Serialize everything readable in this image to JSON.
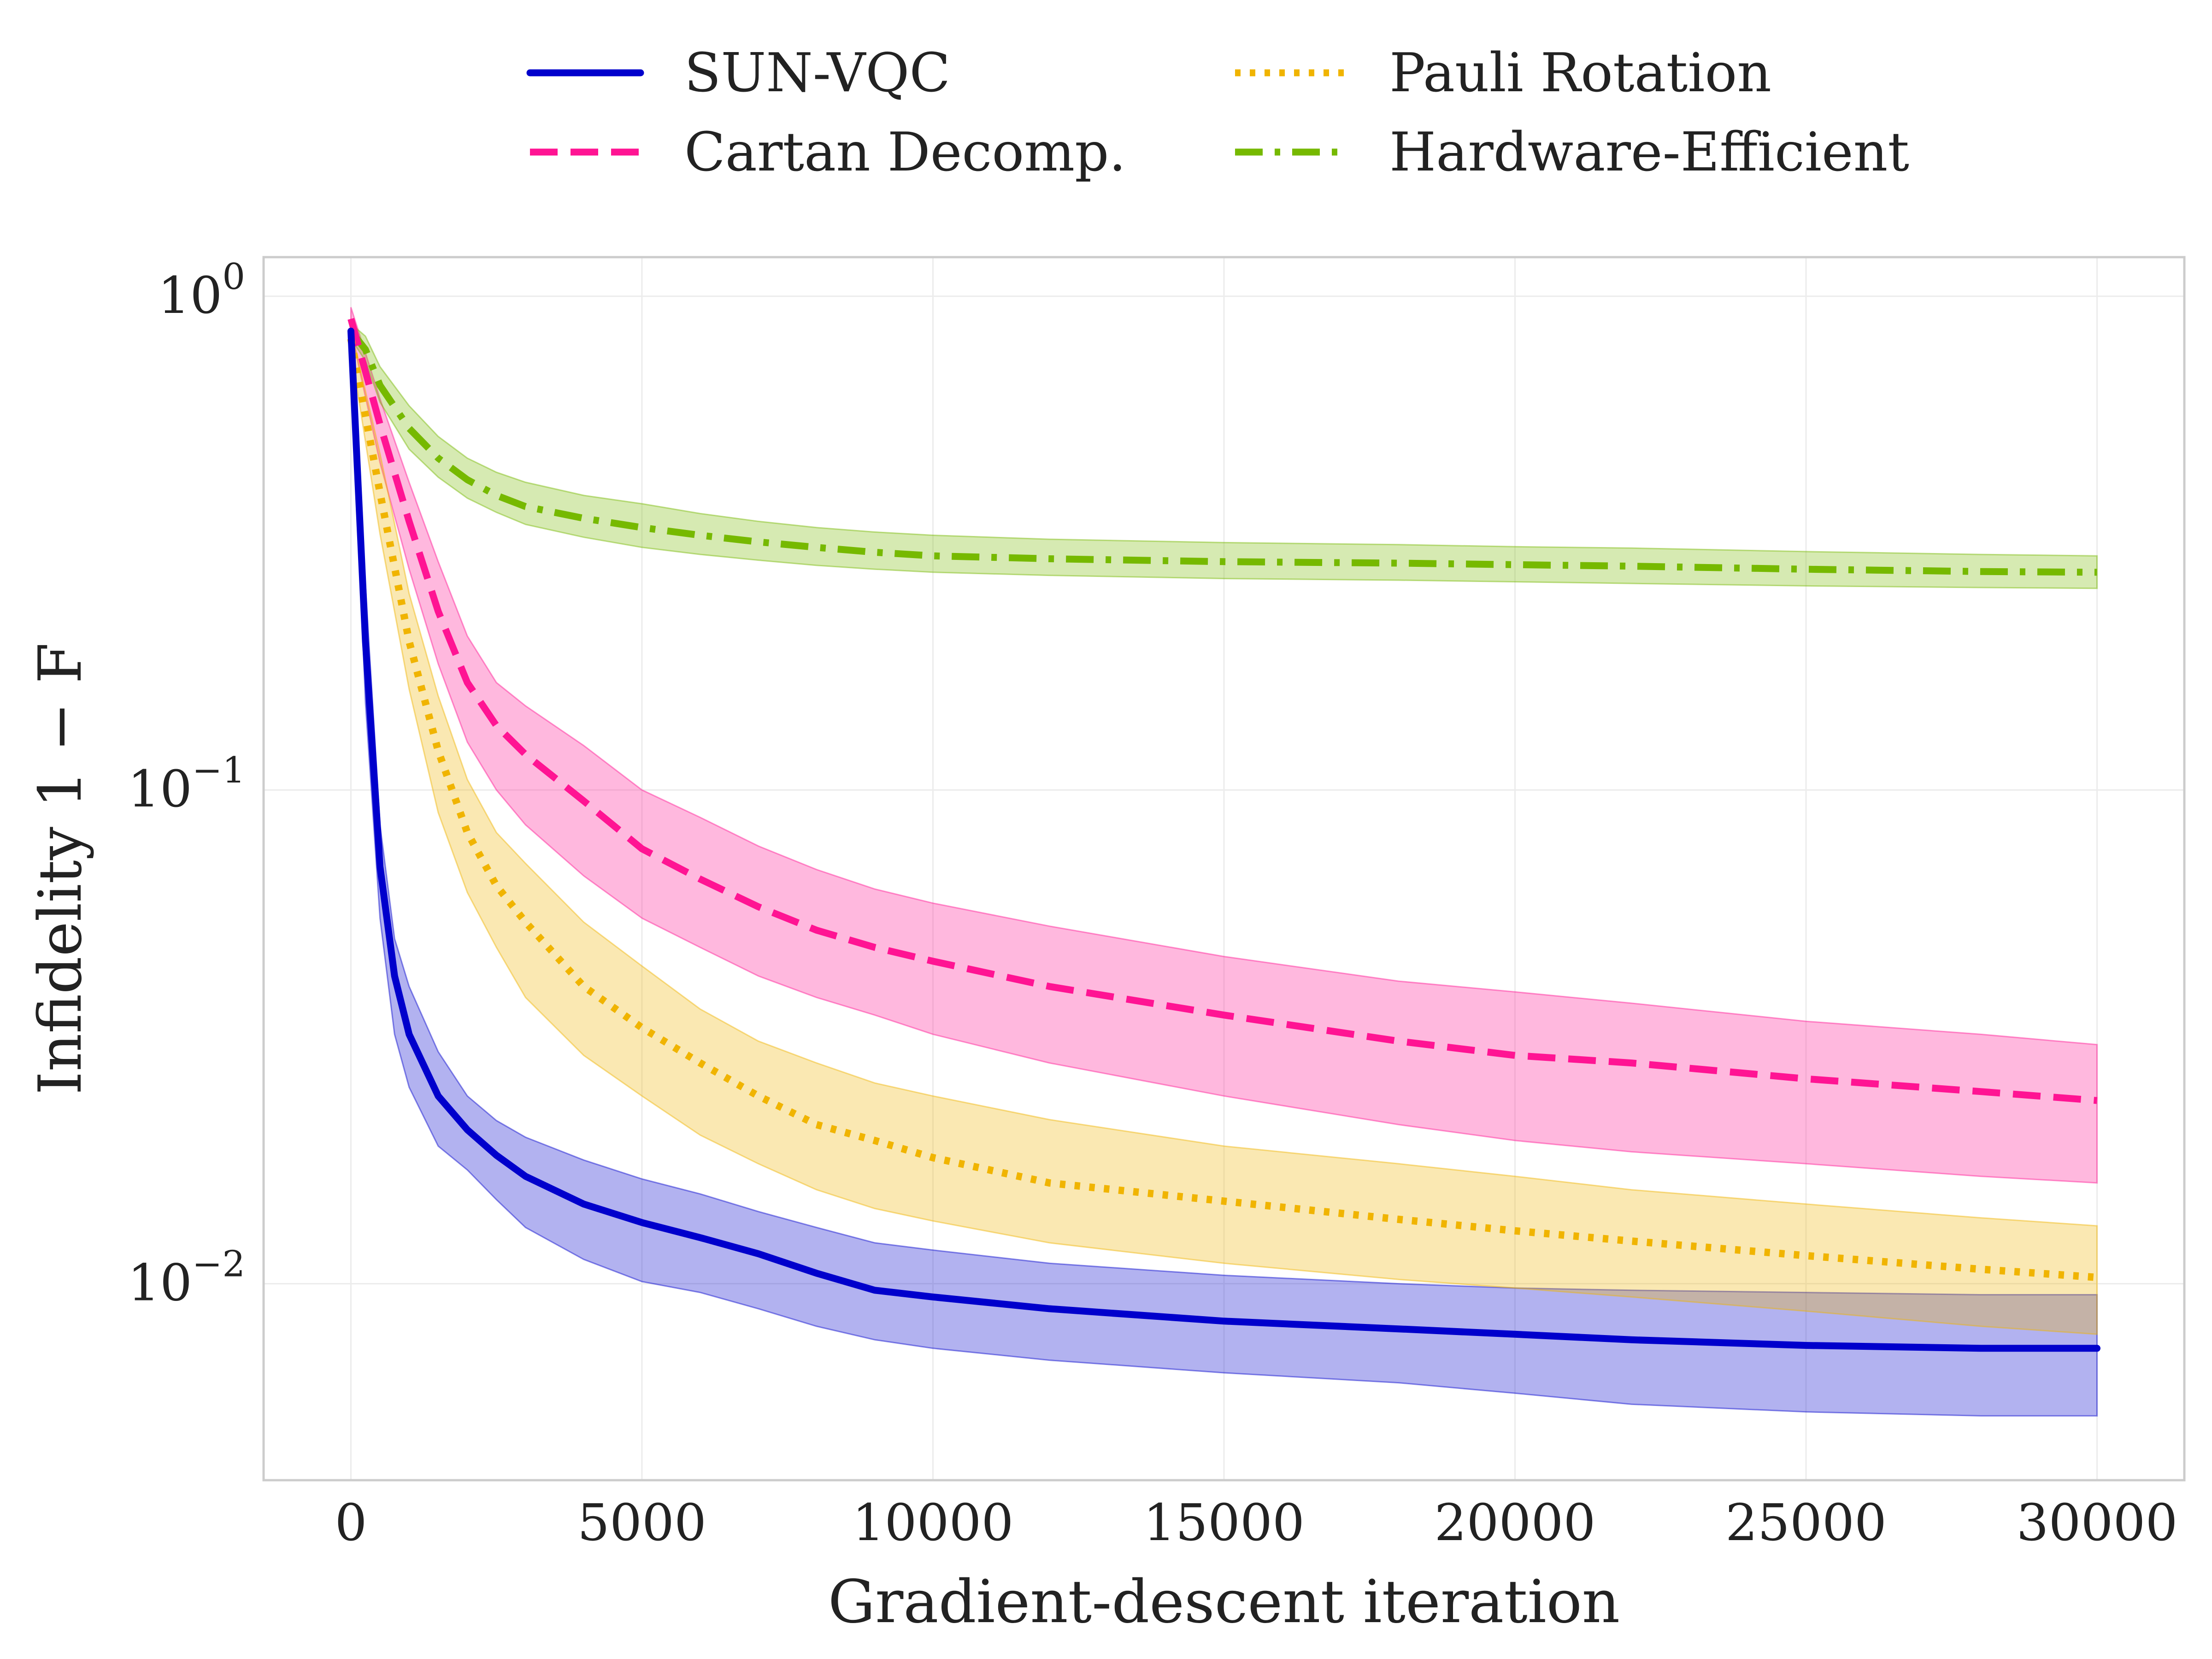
{
  "chart_data": {
    "type": "line",
    "title": "",
    "xlabel": "Gradient-descent iteration",
    "ylabel": "Infidelity 1 − F",
    "xlim": [
      -1500,
      31500
    ],
    "ylim": [
      0.004,
      1.2
    ],
    "yscale": "log",
    "grid": true,
    "legend_position": "top-center",
    "x_ticks": [
      0,
      5000,
      10000,
      15000,
      20000,
      25000,
      30000
    ],
    "x_tick_labels": [
      "0",
      "5000",
      "10000",
      "15000",
      "20000",
      "25000",
      "30000"
    ],
    "y_ticks": [
      {
        "value": 1,
        "base": "10",
        "exp": "0"
      },
      {
        "value": 0.1,
        "base": "10",
        "exp": "−1"
      },
      {
        "value": 0.01,
        "base": "10",
        "exp": "−2"
      }
    ],
    "series": [
      {
        "name": "SUN-VQC",
        "color": "#0000cc",
        "dash": "solid",
        "x": [
          0,
          250,
          500,
          750,
          1000,
          1500,
          2000,
          2500,
          3000,
          4000,
          5000,
          6000,
          7000,
          8000,
          9000,
          10000,
          12000,
          15000,
          18000,
          20000,
          22000,
          25000,
          28000,
          30000
        ],
        "mean": [
          0.85,
          0.2,
          0.07,
          0.042,
          0.032,
          0.024,
          0.0205,
          0.0182,
          0.0165,
          0.0145,
          0.0133,
          0.0124,
          0.0115,
          0.0105,
          0.0097,
          0.0094,
          0.0089,
          0.0084,
          0.0081,
          0.0079,
          0.0077,
          0.0075,
          0.0074,
          0.0074
        ],
        "lower": [
          0.8,
          0.15,
          0.055,
          0.032,
          0.025,
          0.019,
          0.017,
          0.0148,
          0.013,
          0.0112,
          0.0101,
          0.0096,
          0.0089,
          0.0082,
          0.0077,
          0.0074,
          0.007,
          0.0066,
          0.0063,
          0.006,
          0.0057,
          0.0055,
          0.0054,
          0.0054
        ],
        "upper": [
          0.9,
          0.26,
          0.085,
          0.05,
          0.04,
          0.0295,
          0.024,
          0.0214,
          0.0198,
          0.0178,
          0.0163,
          0.0152,
          0.014,
          0.013,
          0.0121,
          0.0117,
          0.011,
          0.0104,
          0.01,
          0.0098,
          0.0097,
          0.0096,
          0.0095,
          0.0095
        ]
      },
      {
        "name": "Cartan Decomp.",
        "color": "#ff1493",
        "dash": "dashed",
        "x": [
          0,
          500,
          1000,
          1500,
          2000,
          2500,
          3000,
          4000,
          5000,
          6000,
          7000,
          8000,
          9000,
          10000,
          12000,
          15000,
          18000,
          20000,
          22000,
          25000,
          28000,
          30000
        ],
        "mean": [
          0.9,
          0.55,
          0.35,
          0.23,
          0.165,
          0.135,
          0.118,
          0.095,
          0.076,
          0.066,
          0.058,
          0.052,
          0.048,
          0.045,
          0.04,
          0.035,
          0.031,
          0.029,
          0.028,
          0.026,
          0.0245,
          0.0235
        ],
        "lower": [
          0.85,
          0.46,
          0.28,
          0.18,
          0.125,
          0.1,
          0.085,
          0.067,
          0.055,
          0.048,
          0.042,
          0.038,
          0.035,
          0.032,
          0.028,
          0.024,
          0.021,
          0.0195,
          0.0185,
          0.0175,
          0.0165,
          0.016
        ],
        "upper": [
          0.95,
          0.62,
          0.42,
          0.29,
          0.205,
          0.165,
          0.148,
          0.123,
          0.1,
          0.088,
          0.077,
          0.069,
          0.063,
          0.059,
          0.053,
          0.046,
          0.041,
          0.039,
          0.037,
          0.034,
          0.032,
          0.0305
        ]
      },
      {
        "name": "Pauli Rotation",
        "color": "#f0b400",
        "dash": "dotted",
        "x": [
          0,
          500,
          1000,
          1500,
          2000,
          2500,
          3000,
          4000,
          5000,
          6000,
          7000,
          8000,
          9000,
          10000,
          12000,
          15000,
          18000,
          20000,
          22000,
          25000,
          28000,
          30000
        ],
        "mean": [
          0.82,
          0.4,
          0.2,
          0.12,
          0.082,
          0.064,
          0.054,
          0.04,
          0.033,
          0.028,
          0.024,
          0.021,
          0.0195,
          0.018,
          0.016,
          0.0147,
          0.0135,
          0.0128,
          0.0122,
          0.0114,
          0.0107,
          0.0103
        ],
        "lower": [
          0.78,
          0.33,
          0.16,
          0.09,
          0.062,
          0.048,
          0.038,
          0.029,
          0.024,
          0.02,
          0.0175,
          0.0155,
          0.0142,
          0.0134,
          0.0121,
          0.011,
          0.0102,
          0.0098,
          0.0094,
          0.0088,
          0.0082,
          0.0079
        ],
        "upper": [
          0.86,
          0.48,
          0.25,
          0.155,
          0.105,
          0.082,
          0.071,
          0.054,
          0.044,
          0.036,
          0.031,
          0.028,
          0.0255,
          0.024,
          0.0215,
          0.019,
          0.0175,
          0.0165,
          0.0155,
          0.0145,
          0.0136,
          0.0131
        ]
      },
      {
        "name": "Hardware-Efficient",
        "color": "#76b900",
        "dash": "dashdot",
        "x": [
          0,
          250,
          500,
          1000,
          1500,
          2000,
          2500,
          3000,
          4000,
          5000,
          6000,
          7000,
          8000,
          9000,
          10000,
          12000,
          15000,
          18000,
          20000,
          22000,
          25000,
          28000,
          30000
        ],
        "mean": [
          0.85,
          0.78,
          0.66,
          0.54,
          0.47,
          0.425,
          0.395,
          0.375,
          0.355,
          0.34,
          0.328,
          0.318,
          0.31,
          0.303,
          0.298,
          0.294,
          0.29,
          0.288,
          0.286,
          0.284,
          0.28,
          0.277,
          0.276
        ],
        "lower": [
          0.82,
          0.74,
          0.61,
          0.49,
          0.43,
          0.39,
          0.365,
          0.345,
          0.325,
          0.31,
          0.3,
          0.292,
          0.285,
          0.28,
          0.276,
          0.272,
          0.268,
          0.266,
          0.264,
          0.262,
          0.259,
          0.257,
          0.256
        ],
        "upper": [
          0.88,
          0.83,
          0.72,
          0.6,
          0.52,
          0.47,
          0.44,
          0.42,
          0.395,
          0.38,
          0.363,
          0.35,
          0.34,
          0.333,
          0.328,
          0.322,
          0.317,
          0.314,
          0.311,
          0.309,
          0.304,
          0.3,
          0.298
        ]
      }
    ]
  }
}
